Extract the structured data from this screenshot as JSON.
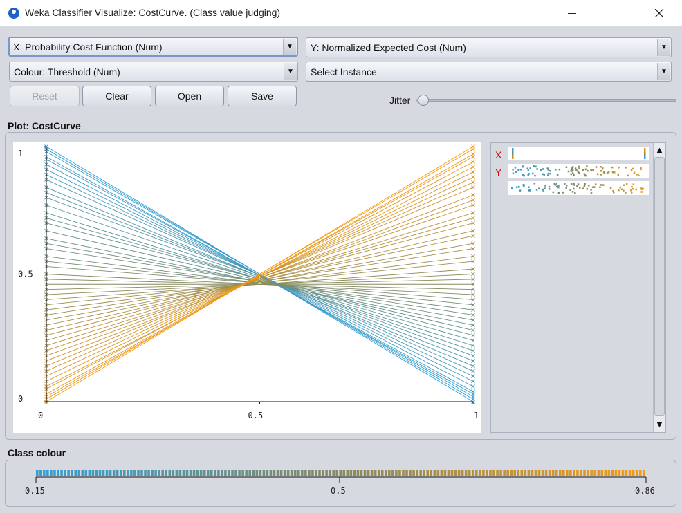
{
  "window": {
    "title": "Weka Classifier Visualize: CostCurve. (Class value judging)",
    "minimize_icon": "minimize-icon",
    "maximize_icon": "maximize-icon",
    "close_icon": "close-icon"
  },
  "controls": {
    "x_axis": "X: Probability Cost Function (Num)",
    "y_axis": "Y: Normalized Expected Cost (Num)",
    "colour": "Colour: Threshold (Num)",
    "select_instance": "Select Instance",
    "reset_label": "Reset",
    "clear_label": "Clear",
    "open_label": "Open",
    "save_label": "Save",
    "jitter_label": "Jitter",
    "jitter_value": 0
  },
  "plot": {
    "title": "Plot: CostCurve",
    "x_axis_letter": "X",
    "y_axis_letter": "Y"
  },
  "class_colour": {
    "title": "Class colour",
    "min_label": "0.15",
    "mid_label": "0.5",
    "max_label": "0.86",
    "low_color": "#2f9fd9",
    "high_color": "#f59a12"
  },
  "chart_data": {
    "type": "line",
    "x_ticks": [
      "0",
      "0.5",
      "1"
    ],
    "y_ticks": [
      "0",
      "0.5",
      "1"
    ],
    "xlim": [
      0,
      1
    ],
    "ylim": [
      0,
      1
    ],
    "color_range": [
      0.15,
      0.86
    ],
    "series_start_y": [
      1.0,
      0.99,
      0.98,
      0.96,
      0.95,
      0.93,
      0.91,
      0.89,
      0.87,
      0.84,
      0.82,
      0.8,
      0.77,
      0.74,
      0.72,
      0.7,
      0.67,
      0.64,
      0.62,
      0.6,
      0.57,
      0.55,
      0.53,
      0.5,
      0.48,
      0.46,
      0.44,
      0.42,
      0.4,
      0.38,
      0.36,
      0.34,
      0.32,
      0.3,
      0.28,
      0.26,
      0.24,
      0.22,
      0.2,
      0.18,
      0.16,
      0.14,
      0.12,
      0.1,
      0.08,
      0.06,
      0.05,
      0.03,
      0.02,
      0.01,
      0.0
    ],
    "series_end_y": [
      0.0,
      0.01,
      0.02,
      0.03,
      0.04,
      0.06,
      0.08,
      0.1,
      0.12,
      0.14,
      0.16,
      0.18,
      0.2,
      0.22,
      0.24,
      0.26,
      0.28,
      0.3,
      0.32,
      0.34,
      0.36,
      0.38,
      0.4,
      0.42,
      0.44,
      0.46,
      0.48,
      0.5,
      0.52,
      0.55,
      0.57,
      0.6,
      0.62,
      0.65,
      0.67,
      0.7,
      0.72,
      0.74,
      0.77,
      0.79,
      0.81,
      0.84,
      0.86,
      0.88,
      0.9,
      0.92,
      0.94,
      0.96,
      0.97,
      0.99,
      1.0
    ]
  }
}
